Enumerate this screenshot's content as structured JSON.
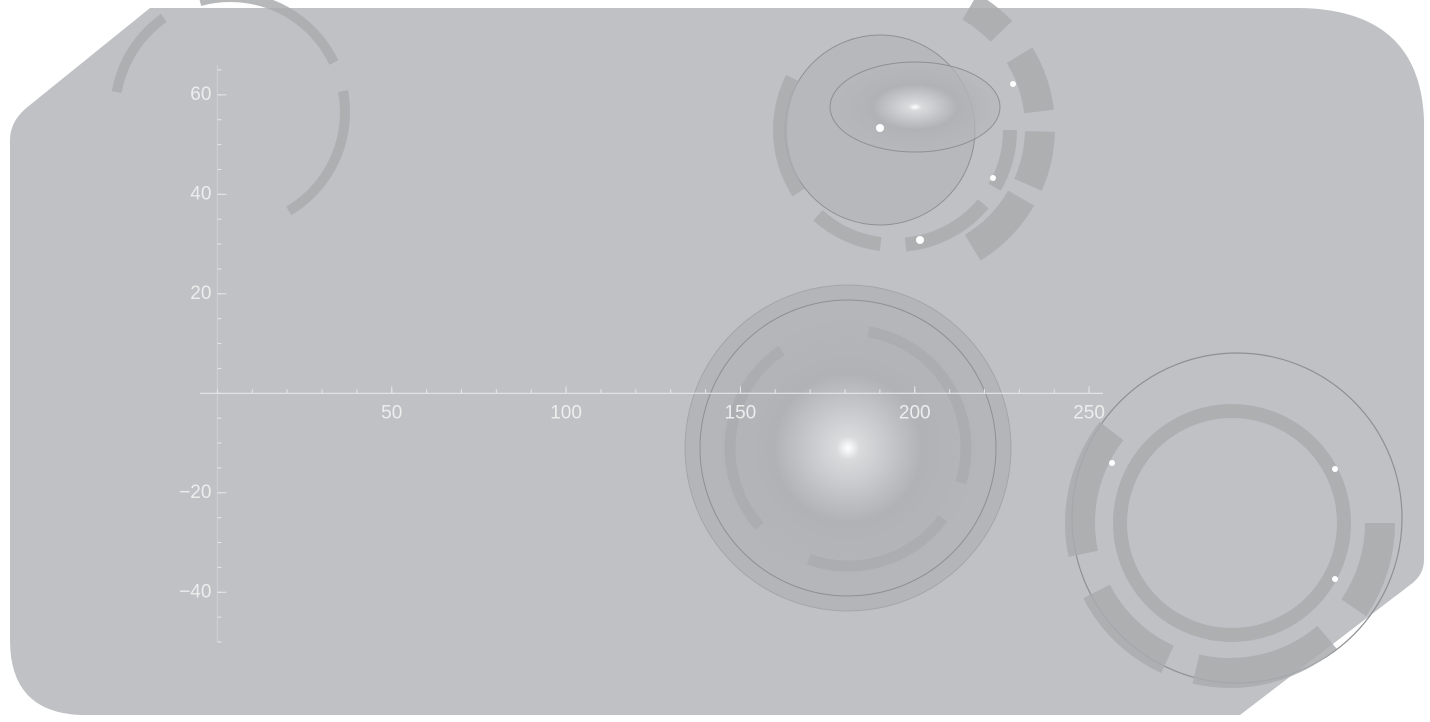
{
  "chart_data": {
    "type": "axes",
    "xlim": [
      -5,
      254
    ],
    "xticks": [
      50,
      100,
      150,
      200,
      250
    ],
    "ylim": [
      -50,
      66
    ],
    "yticks": [
      60,
      40,
      20,
      {
        "value": -20,
        "label": "−20"
      },
      {
        "value": -40,
        "label": "−40"
      }
    ],
    "color": "#e6e7e9"
  }
}
